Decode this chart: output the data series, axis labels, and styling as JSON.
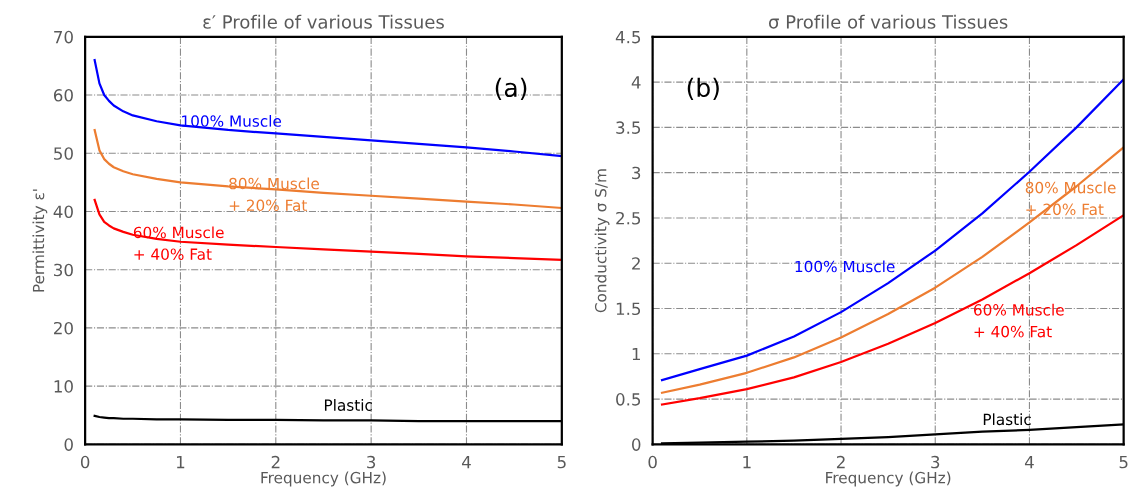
{
  "chart_data": [
    {
      "type": "line",
      "title": "ε′ Profile of various Tissues",
      "xlabel": "Frequency (GHz)",
      "ylabel": "Permittivity ε'",
      "annotations": [
        "(a)"
      ],
      "x": [
        0.1,
        0.15,
        0.2,
        0.25,
        0.3,
        0.4,
        0.5,
        0.75,
        1,
        1.5,
        2,
        2.5,
        3,
        3.5,
        4,
        4.5,
        5
      ],
      "series": [
        {
          "name": "100% Muscle",
          "color": "#0000ff",
          "values": [
            66,
            62,
            60,
            59,
            58.2,
            57.2,
            56.5,
            55.5,
            54.8,
            54,
            53.4,
            52.8,
            52.2,
            51.6,
            51,
            50.3,
            49.5
          ]
        },
        {
          "name": "80% Muscle\n+ 20% Fat",
          "color": "#ed7d31",
          "values": [
            54,
            50.5,
            49,
            48.2,
            47.6,
            46.9,
            46.4,
            45.6,
            45,
            44.3,
            43.8,
            43.2,
            42.7,
            42.2,
            41.7,
            41.2,
            40.6
          ]
        },
        {
          "name": "60% Muscle\n+ 40% Fat",
          "color": "#ff0000",
          "values": [
            42,
            39.5,
            38.2,
            37.6,
            37.1,
            36.5,
            36,
            35.3,
            34.8,
            34.3,
            33.9,
            33.5,
            33.1,
            32.7,
            32.3,
            32,
            31.7
          ]
        },
        {
          "name": "Plastic",
          "color": "#000000",
          "values": [
            4.9,
            4.7,
            4.6,
            4.5,
            4.5,
            4.4,
            4.4,
            4.3,
            4.3,
            4.2,
            4.2,
            4.1,
            4.1,
            4.0,
            4.0,
            4.0,
            4.0
          ]
        }
      ],
      "xlim": [
        0,
        5
      ],
      "xticks": [
        0,
        1,
        2,
        3,
        4,
        5
      ],
      "ylim": [
        0,
        70
      ],
      "yticks": [
        0,
        10,
        20,
        30,
        40,
        50,
        60,
        70
      ],
      "grid": true,
      "legend": false,
      "line_style": "solid"
    },
    {
      "type": "line",
      "title": "σ Profile of various Tissues",
      "xlabel": "Frequency (GHz)",
      "ylabel": "Conductivity σ S/m",
      "annotations": [
        "(b)"
      ],
      "x": [
        0.1,
        0.5,
        1,
        1.5,
        2,
        2.5,
        3,
        3.5,
        4,
        4.5,
        5
      ],
      "series": [
        {
          "name": "100% Muscle",
          "color": "#0000ff",
          "values": [
            0.71,
            0.83,
            0.98,
            1.19,
            1.46,
            1.78,
            2.14,
            2.55,
            3.01,
            3.5,
            4.03
          ]
        },
        {
          "name": "80% Muscle\n+ 20% Fat",
          "color": "#ed7d31",
          "values": [
            0.57,
            0.66,
            0.79,
            0.96,
            1.18,
            1.44,
            1.73,
            2.07,
            2.45,
            2.85,
            3.28
          ]
        },
        {
          "name": "60% Muscle\n+ 40% Fat",
          "color": "#ff0000",
          "values": [
            0.44,
            0.51,
            0.61,
            0.74,
            0.91,
            1.11,
            1.34,
            1.6,
            1.89,
            2.2,
            2.53
          ]
        },
        {
          "name": "Plastic",
          "color": "#000000",
          "values": [
            0.01,
            0.02,
            0.03,
            0.04,
            0.06,
            0.08,
            0.11,
            0.14,
            0.16,
            0.19,
            0.22
          ]
        }
      ],
      "xlim": [
        0,
        5
      ],
      "xticks": [
        0,
        1,
        2,
        3,
        4,
        5
      ],
      "ylim": [
        0,
        4.5
      ],
      "yticks": [
        0,
        0.5,
        1,
        1.5,
        2,
        2.5,
        3,
        3.5,
        4,
        4.5
      ],
      "grid": true,
      "legend": false,
      "line_style": "solid"
    }
  ]
}
